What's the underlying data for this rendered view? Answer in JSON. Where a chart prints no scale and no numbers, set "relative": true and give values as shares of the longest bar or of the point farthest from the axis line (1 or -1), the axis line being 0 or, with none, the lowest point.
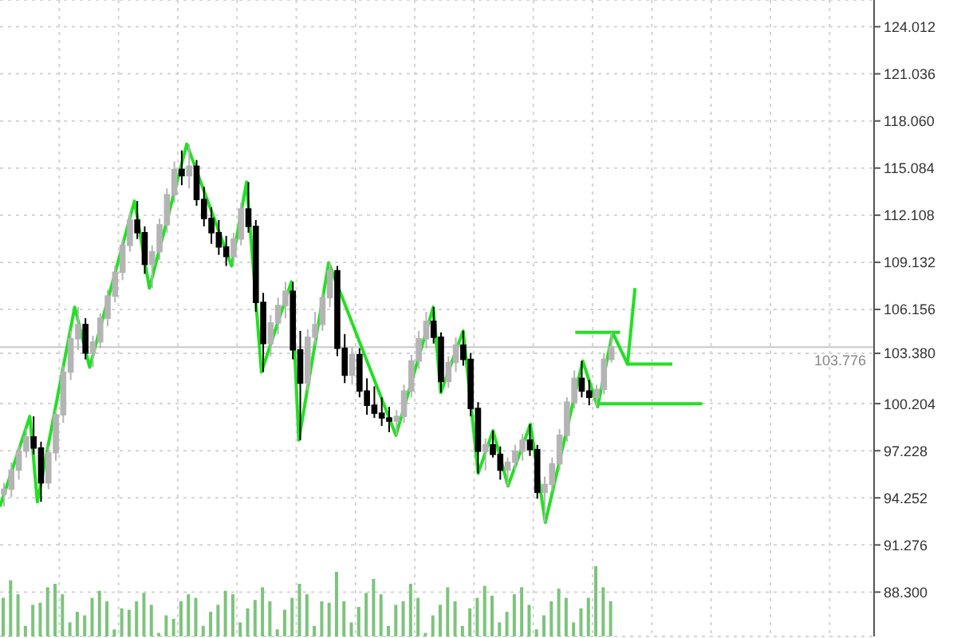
{
  "chart_data": [
    {
      "type": "candlestick",
      "categories": [
        null,
        null,
        null,
        null,
        null,
        null,
        null,
        null,
        null,
        null,
        null,
        null,
        null,
        null,
        null,
        null,
        null,
        null,
        null,
        null,
        null,
        null,
        null,
        null,
        null,
        null,
        null,
        null,
        null,
        null,
        null,
        null,
        null,
        null,
        null,
        null,
        null,
        null,
        null,
        null,
        null,
        null,
        null,
        null,
        null,
        null,
        null,
        null,
        null,
        null,
        null,
        null,
        null,
        null,
        null,
        null,
        null,
        null,
        null,
        null,
        null,
        null,
        null,
        null,
        null,
        null,
        null,
        null,
        null,
        null,
        null,
        null,
        null,
        null,
        null,
        null,
        null,
        null,
        null,
        null,
        null,
        null,
        null,
        null,
        null,
        null,
        null,
        null,
        null,
        null,
        null,
        null,
        null,
        null,
        null,
        null,
        null,
        null,
        null,
        null,
        null,
        null,
        null,
        null,
        null,
        null,
        null,
        null,
        null,
        null,
        null,
        null,
        null,
        null,
        null,
        null,
        null,
        null
      ],
      "ylim": [
        85.5,
        125.7
      ],
      "yticks": [
        {
          "value": 88.3,
          "label": "88.300"
        },
        91.276,
        94.252,
        97.228,
        100.204,
        {
          "value": 103.38,
          "label": "103.380"
        },
        106.156,
        109.132,
        112.108,
        115.084,
        {
          "value": 118.06,
          "label": "118.060"
        },
        121.036,
        124.012
      ],
      "grid": true,
      "tick_labels": "y",
      "ref_lines": [
        {
          "axis": "y",
          "value": 103.776,
          "label": "103.776",
          "color": "#c8c8c8"
        }
      ],
      "series": [
        {
          "type": "candlestick",
          "colors": [
            "#b4b4b4",
            "#b4b4b4",
            "#b4b4b4",
            "#b4b4b4",
            "#000000",
            "#000000",
            "#b4b4b4",
            "#b4b4b4",
            "#b4b4b4",
            "#b4b4b4",
            "#b4b4b4",
            "#000000",
            "#b4b4b4",
            "#b4b4b4",
            "#b4b4b4",
            "#b4b4b4",
            "#b4b4b4",
            "#b4b4b4",
            "#000000",
            "#000000",
            "#b4b4b4",
            "#b4b4b4",
            "#b4b4b4",
            "#b4b4b4",
            "#000000",
            "#b4b4b4",
            "#000000",
            "#000000",
            "#000000",
            "#000000",
            "#000000",
            "#b4b4b4",
            "#b4b4b4",
            "#000000",
            "#000000",
            "#000000",
            "#b4b4b4",
            "#b4b4b4",
            "#b4b4b4",
            "#000000",
            "#000000",
            "#b4b4b4",
            "#b4b4b4",
            "#b4b4b4",
            "#b4b4b4",
            "#000000",
            "#000000",
            "#b4b4b4",
            "#000000",
            "#000000",
            "#000000",
            "#000000",
            "#000000",
            "#b4b4b4",
            "#b4b4b4",
            "#b4b4b4",
            "#b4b4b4",
            "#b4b4b4",
            "#000000",
            "#000000",
            "#b4b4b4",
            "#b4b4b4",
            "#000000",
            "#000000",
            "#000000",
            "#b4b4b4",
            "#000000",
            "#000000",
            "#b4b4b4",
            "#b4b4b4",
            "#b4b4b4",
            "#000000",
            "#000000",
            "#b4b4b4",
            "#b4b4b4",
            "#b4b4b4",
            "#b4b4b4",
            "#b4b4b4",
            "#000000",
            "#000000",
            "#b4b4b4",
            "#b4b4b4",
            "#b4b4b4",
            null,
            null,
            null,
            null,
            null,
            null,
            null,
            null,
            null,
            null,
            null,
            null,
            null,
            null,
            null,
            null,
            null,
            null,
            null,
            null,
            null,
            null,
            null,
            null,
            null,
            null,
            null,
            null,
            null,
            null,
            null,
            null,
            null,
            null,
            null
          ],
          "ohlc": [
            [
              94.5,
              95.2,
              93.7,
              94.8
            ],
            [
              94.8,
              96.5,
              94.3,
              96.0
            ],
            [
              96.0,
              97.6,
              95.4,
              97.2
            ],
            [
              97.2,
              98.6,
              96.8,
              98.1
            ],
            [
              98.1,
              99.4,
              97.0,
              97.4
            ],
            [
              97.4,
              97.8,
              94.0,
              95.2
            ],
            [
              95.2,
              97.5,
              94.8,
              97.1
            ],
            [
              97.1,
              99.8,
              96.6,
              99.5
            ],
            [
              99.5,
              102.6,
              99.0,
              102.2
            ],
            [
              102.2,
              104.8,
              101.7,
              104.3
            ],
            [
              104.3,
              106.3,
              103.6,
              105.2
            ],
            [
              105.2,
              105.6,
              103.0,
              103.4
            ],
            [
              103.4,
              104.5,
              102.5,
              104.1
            ],
            [
              104.1,
              105.9,
              103.7,
              105.6
            ],
            [
              105.6,
              107.4,
              105.1,
              107.0
            ],
            [
              107.0,
              108.9,
              106.6,
              108.5
            ],
            [
              108.5,
              110.6,
              108.0,
              110.2
            ],
            [
              110.2,
              112.3,
              109.8,
              111.8
            ],
            [
              111.8,
              113.0,
              110.6,
              111.0
            ],
            [
              111.0,
              111.4,
              108.4,
              109.0
            ],
            [
              109.0,
              110.2,
              107.5,
              109.8
            ],
            [
              109.8,
              111.9,
              109.3,
              111.5
            ],
            [
              111.5,
              113.8,
              111.0,
              113.4
            ],
            [
              113.4,
              115.5,
              112.9,
              115.0
            ],
            [
              115.0,
              116.2,
              114.0,
              114.6
            ],
            [
              114.6,
              116.6,
              113.8,
              115.2
            ],
            [
              115.2,
              115.6,
              112.7,
              113.1
            ],
            [
              113.1,
              113.9,
              111.4,
              111.9
            ],
            [
              111.9,
              112.6,
              110.3,
              111.0
            ],
            [
              111.0,
              111.8,
              109.6,
              110.1
            ],
            [
              110.1,
              110.8,
              108.9,
              109.5
            ],
            [
              109.5,
              111.0,
              108.9,
              110.6
            ],
            [
              110.6,
              112.9,
              110.2,
              112.5
            ],
            [
              112.5,
              114.2,
              111.0,
              111.4
            ],
            [
              111.4,
              111.8,
              106.0,
              106.6
            ],
            [
              106.6,
              107.2,
              102.2,
              104.0
            ],
            [
              104.0,
              105.8,
              103.2,
              105.3
            ],
            [
              105.3,
              106.9,
              104.6,
              106.4
            ],
            [
              106.4,
              107.9,
              105.6,
              107.3
            ],
            [
              107.3,
              107.9,
              103.0,
              103.6
            ],
            [
              103.6,
              104.8,
              97.9,
              101.5
            ],
            [
              101.5,
              104.9,
              101.0,
              104.4
            ],
            [
              104.4,
              106.0,
              103.9,
              105.2
            ],
            [
              105.2,
              107.2,
              104.8,
              106.9
            ],
            [
              106.9,
              109.1,
              106.3,
              108.6
            ],
            [
              108.6,
              108.9,
              103.2,
              103.7
            ],
            [
              103.7,
              104.6,
              101.5,
              102.0
            ],
            [
              102.0,
              103.8,
              101.4,
              103.3
            ],
            [
              103.3,
              103.7,
              100.6,
              101.0
            ],
            [
              101.0,
              101.8,
              99.5,
              100.1
            ],
            [
              100.1,
              101.3,
              99.3,
              99.6
            ],
            [
              99.6,
              100.6,
              98.8,
              99.3
            ],
            [
              99.3,
              100.0,
              98.4,
              99.1
            ],
            [
              99.1,
              99.8,
              98.2,
              99.4
            ],
            [
              99.4,
              101.4,
              99.0,
              101.0
            ],
            [
              101.0,
              103.3,
              100.6,
              102.9
            ],
            [
              102.9,
              104.8,
              102.4,
              104.3
            ],
            [
              104.3,
              106.0,
              103.7,
              105.4
            ],
            [
              105.4,
              106.3,
              104.0,
              104.4
            ],
            [
              104.4,
              104.7,
              100.9,
              101.6
            ],
            [
              101.6,
              103.2,
              101.2,
              102.8
            ],
            [
              102.8,
              104.4,
              102.2,
              103.9
            ],
            [
              103.9,
              104.8,
              102.6,
              103.0
            ],
            [
              103.0,
              103.4,
              99.4,
              99.9
            ],
            [
              99.9,
              100.3,
              95.8,
              97.2
            ],
            [
              97.2,
              98.0,
              96.0,
              97.6
            ],
            [
              97.6,
              98.5,
              96.8,
              97.0
            ],
            [
              97.0,
              97.5,
              95.4,
              96.0
            ],
            [
              96.0,
              96.8,
              95.0,
              96.5
            ],
            [
              96.5,
              97.6,
              96.0,
              97.2
            ],
            [
              97.2,
              98.3,
              96.6,
              97.9
            ],
            [
              97.9,
              98.9,
              96.9,
              97.3
            ],
            [
              97.3,
              97.6,
              94.2,
              94.6
            ],
            [
              94.6,
              95.6,
              92.7,
              95.1
            ],
            [
              95.1,
              96.8,
              94.7,
              96.4
            ],
            [
              96.4,
              98.6,
              96.0,
              98.2
            ],
            [
              98.2,
              100.6,
              97.8,
              100.3
            ],
            [
              100.3,
              102.3,
              99.9,
              101.8
            ],
            [
              101.8,
              102.9,
              100.6,
              101.0
            ],
            [
              101.0,
              101.7,
              100.1,
              100.6
            ],
            [
              100.6,
              101.4,
              100.0,
              101.1
            ],
            [
              101.1,
              103.4,
              100.8,
              103.0
            ],
            [
              103.0,
              104.7,
              102.8,
              103.8
            ],
            null,
            null,
            null,
            null,
            null,
            null,
            null,
            null,
            null,
            null,
            null,
            null,
            null,
            null,
            null,
            null,
            null,
            null,
            null,
            null,
            null,
            null,
            null,
            null,
            null,
            null,
            null,
            null,
            null,
            null,
            null,
            null,
            null,
            null,
            null
          ]
        },
        {
          "type": "line",
          "color": "#22e022",
          "values": [
            93.7,
            null,
            null,
            null,
            99.4,
            94.0,
            null,
            null,
            null,
            null,
            106.3,
            null,
            102.5,
            null,
            null,
            null,
            null,
            null,
            113.0,
            null,
            107.5,
            null,
            null,
            null,
            null,
            116.6,
            null,
            null,
            null,
            null,
            null,
            108.9,
            null,
            114.2,
            null,
            102.2,
            null,
            null,
            null,
            107.9,
            97.9,
            null,
            null,
            null,
            109.1,
            null,
            null,
            null,
            null,
            null,
            null,
            null,
            null,
            98.2,
            null,
            null,
            null,
            null,
            106.3,
            100.9,
            null,
            null,
            104.8,
            null,
            95.8,
            null,
            98.5,
            null,
            95.0,
            null,
            null,
            98.9,
            null,
            92.7,
            null,
            null,
            null,
            null,
            102.9,
            null,
            100.0,
            null,
            104.7,
            null,
            102.7,
            107.5,
            null,
            null,
            null,
            null,
            null,
            null,
            null,
            null,
            null,
            null,
            null,
            null,
            null,
            null,
            null,
            null,
            null,
            null,
            null,
            null,
            null,
            null,
            null,
            null,
            null,
            null,
            null,
            null,
            null,
            null,
            null,
            null
          ]
        },
        {
          "type": "line",
          "color": "#22e022",
          "values": [
            null,
            null,
            null,
            null,
            null,
            null,
            null,
            null,
            null,
            null,
            null,
            null,
            null,
            null,
            null,
            null,
            null,
            null,
            null,
            null,
            null,
            null,
            null,
            null,
            null,
            null,
            null,
            null,
            null,
            null,
            null,
            null,
            null,
            null,
            null,
            null,
            null,
            null,
            null,
            null,
            null,
            null,
            null,
            null,
            null,
            null,
            null,
            null,
            null,
            null,
            null,
            null,
            null,
            null,
            null,
            null,
            null,
            null,
            null,
            null,
            null,
            null,
            null,
            null,
            null,
            null,
            null,
            null,
            null,
            null,
            null,
            null,
            null,
            null,
            null,
            null,
            null,
            104.7,
            null,
            null,
            null,
            null,
            null,
            104.7,
            null,
            null,
            null,
            null,
            null,
            null,
            null,
            null,
            null,
            null,
            null,
            null,
            null,
            null,
            null,
            null,
            null,
            null,
            null,
            null,
            null,
            null,
            null,
            null,
            null,
            null,
            null,
            null,
            null,
            null,
            null,
            null,
            null,
            null
          ]
        },
        {
          "type": "line",
          "color": "#22e022",
          "values": [
            null,
            null,
            null,
            null,
            null,
            null,
            null,
            null,
            null,
            null,
            null,
            null,
            null,
            null,
            null,
            null,
            null,
            null,
            null,
            null,
            null,
            null,
            null,
            null,
            null,
            null,
            null,
            null,
            null,
            null,
            null,
            null,
            null,
            null,
            null,
            null,
            null,
            null,
            null,
            null,
            null,
            null,
            null,
            null,
            null,
            null,
            null,
            null,
            null,
            null,
            null,
            null,
            null,
            null,
            null,
            null,
            null,
            null,
            null,
            null,
            null,
            null,
            null,
            null,
            null,
            null,
            null,
            null,
            null,
            null,
            null,
            null,
            null,
            null,
            null,
            null,
            null,
            null,
            null,
            null,
            null,
            null,
            null,
            null,
            102.7,
            null,
            null,
            null,
            null,
            null,
            102.7,
            null,
            null,
            null,
            null,
            null,
            null,
            null,
            null,
            null,
            null,
            null,
            null,
            null,
            null,
            null,
            null,
            null,
            null,
            null,
            null,
            null,
            null,
            null,
            null,
            null,
            null,
            null
          ]
        },
        {
          "type": "line",
          "color": "#22e022",
          "values": [
            null,
            null,
            null,
            null,
            null,
            null,
            null,
            null,
            null,
            null,
            null,
            null,
            null,
            null,
            null,
            null,
            null,
            null,
            null,
            null,
            null,
            null,
            null,
            null,
            null,
            null,
            null,
            null,
            null,
            null,
            null,
            null,
            null,
            null,
            null,
            null,
            null,
            null,
            null,
            null,
            null,
            null,
            null,
            null,
            null,
            null,
            null,
            null,
            null,
            null,
            null,
            null,
            null,
            null,
            null,
            null,
            null,
            null,
            null,
            null,
            null,
            null,
            null,
            null,
            null,
            null,
            null,
            null,
            null,
            null,
            null,
            null,
            null,
            null,
            null,
            null,
            null,
            null,
            null,
            null,
            100.2,
            null,
            null,
            null,
            null,
            null,
            null,
            null,
            null,
            null,
            null,
            null,
            null,
            null,
            100.2,
            null,
            null,
            null,
            null,
            null,
            null,
            null,
            null,
            null,
            null,
            null,
            null,
            null,
            null,
            null,
            null,
            null,
            null,
            null,
            null,
            null,
            null,
            null
          ]
        }
      ]
    },
    {
      "type": "bar",
      "relative": true,
      "color": "#7cc47b",
      "tick_labels": false,
      "categories": [
        null,
        null,
        null,
        null,
        null,
        null,
        null,
        null,
        null,
        null,
        null,
        null,
        null,
        null,
        null,
        null,
        null,
        null,
        null,
        null,
        null,
        null,
        null,
        null,
        null,
        null,
        null,
        null,
        null,
        null,
        null,
        null,
        null,
        null,
        null,
        null,
        null,
        null,
        null,
        null,
        null,
        null,
        null,
        null,
        null,
        null,
        null,
        null,
        null,
        null,
        null,
        null,
        null,
        null,
        null,
        null,
        null,
        null,
        null,
        null,
        null,
        null,
        null,
        null,
        null,
        null,
        null,
        null,
        null,
        null,
        null,
        null,
        null,
        null,
        null,
        null,
        null,
        null,
        null,
        null,
        null,
        null,
        null,
        null,
        null,
        null,
        null,
        null,
        null,
        null,
        null,
        null,
        null,
        null,
        null,
        null,
        null,
        null,
        null,
        null,
        null,
        null,
        null,
        null,
        null,
        null,
        null,
        null,
        null,
        null,
        null,
        null,
        null,
        null,
        null,
        null,
        null,
        null
      ],
      "values": [
        0.55,
        0.8,
        0.6,
        0.15,
        0.45,
        0.48,
        0.7,
        0.75,
        0.6,
        0.2,
        0.35,
        0.3,
        0.55,
        0.65,
        0.5,
        0.1,
        0.4,
        0.38,
        0.5,
        0.62,
        0.45,
        0.05,
        0.3,
        0.25,
        0.5,
        0.6,
        0.55,
        0.15,
        0.35,
        0.45,
        0.65,
        0.6,
        0.2,
        0.4,
        0.52,
        0.7,
        0.5,
        0.1,
        0.38,
        0.55,
        0.75,
        0.6,
        0.15,
        0.5,
        0.48,
        0.92,
        0.5,
        0.2,
        0.42,
        0.62,
        0.82,
        0.6,
        0.15,
        0.45,
        0.5,
        0.75,
        0.55,
        0.05,
        0.3,
        0.45,
        0.7,
        0.5,
        0.15,
        0.4,
        0.55,
        0.72,
        0.58,
        0.2,
        0.35,
        0.6,
        0.7,
        0.45,
        0.1,
        0.3,
        0.5,
        0.68,
        0.55,
        0.2,
        0.4,
        0.55,
        1.0,
        0.7,
        0.5,
        null,
        null,
        null,
        null,
        null,
        null,
        null,
        null,
        null,
        null,
        null,
        null,
        null,
        null,
        null,
        null,
        null,
        null,
        null,
        null,
        null,
        null,
        null,
        null,
        null,
        null,
        null,
        null,
        null,
        null,
        null,
        null,
        null,
        null,
        null
      ]
    }
  ]
}
